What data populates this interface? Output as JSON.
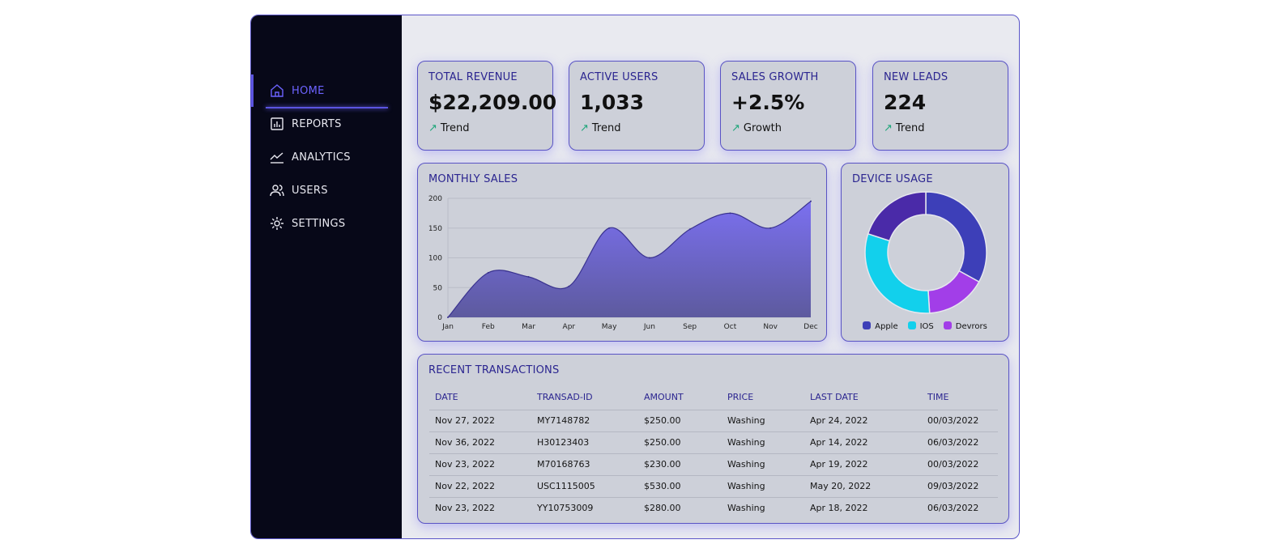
{
  "sidebar": {
    "items": [
      {
        "label": "HOME",
        "icon": "home-icon",
        "active": true
      },
      {
        "label": "REPORTS",
        "icon": "bar-chart-icon"
      },
      {
        "label": "ANALYTICS",
        "icon": "line-chart-icon"
      },
      {
        "label": "USERS",
        "icon": "users-icon"
      },
      {
        "label": "SETTINGS",
        "icon": "gear-icon"
      }
    ]
  },
  "kpis": [
    {
      "title": "TOTAL REVENUE",
      "value": "$22,209.00",
      "sub": "Trend",
      "arrow": "↗"
    },
    {
      "title": "ACTIVE USERS",
      "value": "1,033",
      "sub": "Trend",
      "arrow": "↗"
    },
    {
      "title": "SALES GROWTH",
      "value": "+2.5%",
      "sub": "Growth",
      "arrow": "↗"
    },
    {
      "title": "NEW LEADS",
      "value": "224",
      "sub": "Trend",
      "arrow": "↗"
    }
  ],
  "chart_data": [
    {
      "type": "area",
      "title": "MONTHLY SALES",
      "categories": [
        "Jan",
        "Feb",
        "Mar",
        "Apr",
        "May",
        "Jun",
        "Sep",
        "Oct",
        "Nov",
        "Dec"
      ],
      "values": [
        0,
        75,
        68,
        52,
        150,
        100,
        148,
        175,
        150,
        195
      ],
      "ylim": [
        0,
        200
      ],
      "yticks": [
        0,
        50,
        100,
        150,
        200
      ],
      "grid": true,
      "color": "#6c63e0"
    },
    {
      "type": "pie",
      "title": "DEVICE USAGE",
      "donut": true,
      "slices": [
        {
          "name": "Apple",
          "value": 33,
          "color": "#3d3fb8"
        },
        {
          "name": "Devrors",
          "value": 16,
          "color": "#a23ee8"
        },
        {
          "name": "IOS",
          "value": 31,
          "color": "#12d0ec"
        },
        {
          "name": "",
          "value": 20,
          "color": "#4a2aa8"
        }
      ],
      "legend": [
        {
          "name": "Apple",
          "color": "#3d3fb8"
        },
        {
          "name": "IOS",
          "color": "#12d0ec"
        },
        {
          "name": "Devrors",
          "color": "#a23ee8"
        }
      ],
      "legend_position": "bottom"
    }
  ],
  "transactions": {
    "title": "RECENT TRANSACTIONS",
    "columns": [
      "DATE",
      "TRANSAD-ID",
      "AMOUNT",
      "PRICE",
      "LAST DATE",
      "TIME"
    ],
    "rows": [
      [
        "Nov 27, 2022",
        "MY7148782",
        "$250.00",
        "Washing",
        "Apr 24, 2022",
        "00/03/2022"
      ],
      [
        "Nov 36, 2022",
        "H30123403",
        "$250.00",
        "Washing",
        "Apr 14, 2022",
        "06/03/2022"
      ],
      [
        "Nov 23, 2022",
        "M70168763",
        "$230.00",
        "Washing",
        "Apr 19, 2022",
        "00/03/2022"
      ],
      [
        "Nov 22, 2022",
        "USC1115005",
        "$530.00",
        "Washing",
        "May 20, 2022",
        "09/03/2022"
      ],
      [
        "Nov 23, 2022",
        "YY10753009",
        "$280.00",
        "Washing",
        "Apr 18, 2022",
        "06/03/2022"
      ]
    ]
  }
}
